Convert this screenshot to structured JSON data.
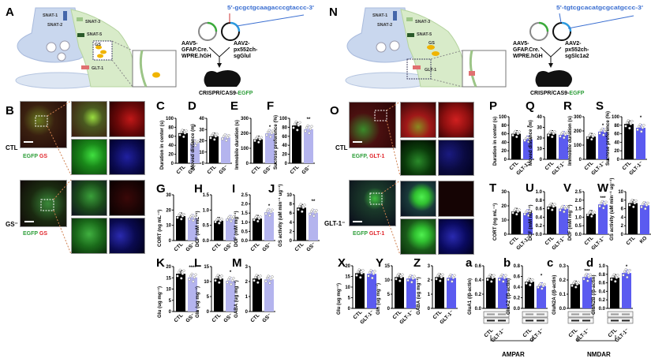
{
  "panel_letters": {
    "A": "A",
    "B": "B",
    "N": "N",
    "O": "O"
  },
  "schematic_gs": {
    "labels": [
      "SNAT-1",
      "SNAT-2",
      "SNAT-3",
      "SNAT-5",
      "GS",
      "GLT-1"
    ],
    "sequence": "5'-gcgctgcaagacccgtaccc-3'",
    "vector1": [
      "AAV5-",
      "GFAP.Cre.",
      "WPRE.hGH"
    ],
    "vector2": [
      "AAV2-",
      "px552ch-",
      "sgGlul"
    ],
    "crispr_prefix": "CRISPR/CAS9-",
    "crispr_suffix": "EGFP"
  },
  "schematic_glt": {
    "labels": [
      "SNAT-1",
      "SNAT-2",
      "SNAT-3",
      "SNAT-5",
      "GS",
      "GLT-1"
    ],
    "sequence": "5'-tgtcgcacatgcgcatgccc-3'",
    "vector1": [
      "AAV5-",
      "GFAP.Cre.",
      "WPRE.hGH"
    ],
    "vector2": [
      "AAV2-",
      "px552ch-",
      "sgSlc1a2"
    ],
    "crispr_prefix": "CRISPR/CAS9-",
    "crispr_suffix": "EGFP"
  },
  "imaging_gs": {
    "row1_label": "CTL",
    "row2_label": "GS⁻",
    "stain_green": "EGFP",
    "stain_red": "GS"
  },
  "imaging_glt": {
    "row1_label": "CTL",
    "row2_label": "GLT-1⁻",
    "stain_green_1": "EGFP,",
    "stain_red_1": "GLT-1",
    "stain_green_2": "EGFP",
    "stain_red_2": "GLT-1"
  },
  "groups": {
    "ampar": "AMPAR",
    "nmdar": "NMDAR"
  },
  "colors": {
    "ctl": "#000000",
    "gs_ko": "#b4b4ee",
    "glt_ko": "#5b5bf0",
    "egfp": "#2e9e3a",
    "red": "#e0242a",
    "seq": "#3b6fd1"
  },
  "chart_data": [
    {
      "id": "C",
      "type": "bar",
      "ylabel": "Duration in center (s)",
      "ylim": [
        0,
        100
      ],
      "ticks": [
        0,
        20,
        40,
        60,
        80,
        100
      ],
      "categories": [
        "CTL",
        "GS⁻"
      ],
      "values": [
        67,
        45
      ],
      "sig": "*",
      "ko": "gs"
    },
    {
      "id": "D",
      "type": "bar",
      "ylabel": "Moved distance (m)",
      "ylim": [
        0,
        40
      ],
      "ticks": [
        0,
        10,
        20,
        30,
        40
      ],
      "categories": [
        "CTL",
        "GS⁻"
      ],
      "values": [
        24,
        23
      ],
      "sig": "",
      "ko": "gs"
    },
    {
      "id": "E",
      "type": "bar",
      "ylabel": "Immobile duration (s)",
      "ylim": [
        0,
        300
      ],
      "ticks": [
        0,
        100,
        200,
        300
      ],
      "categories": [
        "CTL",
        "GS⁻"
      ],
      "values": [
        160,
        200
      ],
      "sig": "*",
      "ko": "gs"
    },
    {
      "id": "F",
      "type": "bar",
      "ylabel": "Sucrose preference (%)",
      "ylim": [
        0,
        100
      ],
      "ticks": [
        0,
        20,
        40,
        60,
        80,
        100
      ],
      "categories": [
        "CTL",
        "GS⁻"
      ],
      "values": [
        84,
        76
      ],
      "sig": "**",
      "ko": "gs"
    },
    {
      "id": "G",
      "type": "bar",
      "ylabel": "CORT (ng mL⁻¹)",
      "ylim": [
        0,
        30
      ],
      "ticks": [
        0,
        10,
        20,
        30
      ],
      "categories": [
        "CTL",
        "GS⁻"
      ],
      "values": [
        16,
        15
      ],
      "sig": "",
      "ko": "gs"
    },
    {
      "id": "H",
      "type": "bar",
      "ylabel": "DCF (mM mL⁻¹)",
      "ylim": [
        0,
        1.5
      ],
      "ticks": [
        "0.0",
        "0.5",
        "1.0",
        "1.5"
      ],
      "categories": [
        "CTL",
        "GS⁻"
      ],
      "values": [
        0.65,
        0.72
      ],
      "sig": "",
      "ko": "gs"
    },
    {
      "id": "I",
      "type": "bar",
      "ylabel": "DCF (mM mg⁻¹)",
      "ylim": [
        0,
        2.5
      ],
      "ticks": [
        "0.0",
        "0.5",
        "1.0",
        "1.5",
        "2.0",
        "2.5"
      ],
      "categories": [
        "CTL",
        "GS⁻"
      ],
      "values": [
        1.2,
        1.55
      ],
      "sig": "*",
      "ko": "gs"
    },
    {
      "id": "J",
      "type": "bar",
      "ylabel": "GS activity (uM min⁻¹ ug⁻¹)",
      "ylim": [
        0,
        10
      ],
      "ticks": [
        0,
        2,
        4,
        6,
        8,
        10
      ],
      "categories": [
        "CTL",
        "GS⁻"
      ],
      "values": [
        7.2,
        6.1
      ],
      "sig": "**",
      "ko": "gs"
    },
    {
      "id": "K",
      "type": "bar",
      "ylabel": "Glu (ug mg⁻¹)",
      "ylim": [
        0,
        20
      ],
      "ticks": [
        0,
        5,
        10,
        15,
        20
      ],
      "categories": [
        "CTL",
        "GS⁻"
      ],
      "values": [
        16.8,
        15.2
      ],
      "sig": "****",
      "ko": "gs"
    },
    {
      "id": "L",
      "type": "bar",
      "ylabel": "Gln (ug mg⁻¹)",
      "ylim": [
        0,
        15
      ],
      "ticks": [
        0,
        5,
        10,
        15
      ],
      "categories": [
        "CTL",
        "GS⁻"
      ],
      "values": [
        11,
        10.3
      ],
      "sig": "*",
      "ko": "gs"
    },
    {
      "id": "M",
      "type": "bar",
      "ylabel": "GABA (ug mg⁻¹)",
      "ylim": [
        0,
        3
      ],
      "ticks": [
        0,
        1,
        2,
        3
      ],
      "categories": [
        "CTL",
        "GS⁻"
      ],
      "values": [
        2.2,
        2.15
      ],
      "sig": "",
      "ko": "gs"
    },
    {
      "id": "P",
      "type": "bar",
      "ylabel": "Duration in center (s)",
      "ylim": [
        0,
        100
      ],
      "ticks": [
        0,
        20,
        40,
        60,
        80,
        100
      ],
      "categories": [
        "CTL",
        "GLT-1⁻"
      ],
      "values": [
        60,
        47
      ],
      "sig": "*",
      "ko": "glt"
    },
    {
      "id": "Q",
      "type": "bar",
      "ylabel": "Moved distance (m)",
      "ylim": [
        0,
        40
      ],
      "ticks": [
        0,
        10,
        20,
        30,
        40
      ],
      "categories": [
        "CTL",
        "GLT-1⁻"
      ],
      "values": [
        24,
        23
      ],
      "sig": "",
      "ko": "glt"
    },
    {
      "id": "R",
      "type": "bar",
      "ylabel": "Immobile duration (s)",
      "ylim": [
        0,
        300
      ],
      "ticks": [
        0,
        100,
        200,
        300
      ],
      "categories": [
        "CTL",
        "GLT-1⁻"
      ],
      "values": [
        160,
        195
      ],
      "sig": "*",
      "ko": "glt"
    },
    {
      "id": "S",
      "type": "bar",
      "ylabel": "Sucrose preference (%)",
      "ylim": [
        0,
        100
      ],
      "ticks": [
        0,
        20,
        40,
        60,
        80,
        100
      ],
      "categories": [
        "CTL",
        "GLT-1⁻"
      ],
      "values": [
        83,
        74
      ],
      "sig": "*",
      "ko": "glt"
    },
    {
      "id": "T",
      "type": "bar",
      "ylabel": "CORT (ng mL⁻¹)",
      "ylim": [
        0,
        30
      ],
      "ticks": [
        0,
        10,
        20,
        30
      ],
      "categories": [
        "CTL",
        "GLT-1⁻"
      ],
      "values": [
        16,
        15
      ],
      "sig": "",
      "ko": "glt"
    },
    {
      "id": "U",
      "type": "bar",
      "ylabel": "DCF (mM mL⁻¹)",
      "ylim": [
        0,
        1.0
      ],
      "ticks": [
        "0.0",
        "0.2",
        "0.4",
        "0.6",
        "0.8",
        "1.0"
      ],
      "categories": [
        "CTL",
        "GLT-1⁻"
      ],
      "values": [
        0.65,
        0.6
      ],
      "sig": "",
      "ko": "glt"
    },
    {
      "id": "V",
      "type": "bar",
      "ylabel": "DCF (mM mg⁻¹)",
      "ylim": [
        0,
        2.5
      ],
      "ticks": [
        "0.0",
        "0.5",
        "1.0",
        "1.5",
        "2.0",
        "2.5"
      ],
      "categories": [
        "CTL",
        "GLT-1⁻"
      ],
      "values": [
        1.2,
        1.75
      ],
      "sig": "***",
      "ko": "glt"
    },
    {
      "id": "W",
      "type": "bar",
      "ylabel": "GS activity (uM min⁻¹ ug⁻¹)",
      "ylim": [
        0,
        10
      ],
      "ticks": [
        0,
        2,
        4,
        6,
        8,
        10
      ],
      "categories": [
        "CTL",
        "KO"
      ],
      "values": [
        7.3,
        6.8
      ],
      "sig": "",
      "ko": "glt"
    },
    {
      "id": "X",
      "type": "bar",
      "ylabel": "Glu (ug mg⁻¹)",
      "ylim": [
        0,
        20
      ],
      "ticks": [
        0,
        5,
        10,
        15,
        20
      ],
      "categories": [
        "CTL",
        "GLT-1⁻"
      ],
      "values": [
        16.5,
        16.2
      ],
      "sig": "",
      "ko": "glt"
    },
    {
      "id": "Y",
      "type": "bar",
      "ylabel": "Gln (ug mg⁻¹)",
      "ylim": [
        0,
        15
      ],
      "ticks": [
        0,
        5,
        10,
        15
      ],
      "categories": [
        "CTL",
        "GLT-1⁻"
      ],
      "values": [
        11,
        10.5
      ],
      "sig": "",
      "ko": "glt"
    },
    {
      "id": "Z",
      "type": "bar",
      "ylabel": "GABA (ug mg⁻¹)",
      "ylim": [
        0,
        3
      ],
      "ticks": [
        0,
        1,
        2,
        3
      ],
      "categories": [
        "CTL",
        "GLT-1⁻"
      ],
      "values": [
        2.2,
        2.15
      ],
      "sig": "",
      "ko": "glt"
    },
    {
      "id": "a",
      "type": "bar",
      "ylabel": "GluA1 (/β-actin)",
      "ylim": [
        0,
        0.6
      ],
      "ticks": [
        "0.0",
        "0.2",
        "0.4",
        "0.6"
      ],
      "categories": [
        "CTL",
        "GLT-1⁻"
      ],
      "values": [
        0.43,
        0.43
      ],
      "sig": "",
      "ko": "glt",
      "blot": true
    },
    {
      "id": "b",
      "type": "bar",
      "ylabel": "GluA2 (/β-actin)",
      "ylim": [
        0,
        0.8
      ],
      "ticks": [
        "0.0",
        "0.2",
        "0.4",
        "0.6",
        "0.8"
      ],
      "categories": [
        "CTL",
        "GLT-1⁻"
      ],
      "values": [
        0.5,
        0.42
      ],
      "sig": "*",
      "ko": "glt",
      "blot": true
    },
    {
      "id": "c",
      "type": "bar",
      "ylabel": "GluN2A (/β-actin)",
      "ylim": [
        0,
        0.3
      ],
      "ticks": [
        "0.0",
        "0.1",
        "0.2",
        "0.3"
      ],
      "categories": [
        "CTL",
        "GLT-1⁻"
      ],
      "values": [
        0.17,
        0.22
      ],
      "sig": "***",
      "ko": "glt",
      "blot": true
    },
    {
      "id": "d",
      "type": "bar",
      "ylabel": "GluN2B (/β-actin)",
      "ylim": [
        0,
        1.0
      ],
      "ticks": [
        "0.0",
        "0.2",
        "0.4",
        "0.6",
        "0.8",
        "1.0"
      ],
      "categories": [
        "CTL",
        "GLT-1⁻"
      ],
      "values": [
        0.72,
        0.83
      ],
      "sig": "*",
      "ko": "glt",
      "blot": true
    }
  ]
}
